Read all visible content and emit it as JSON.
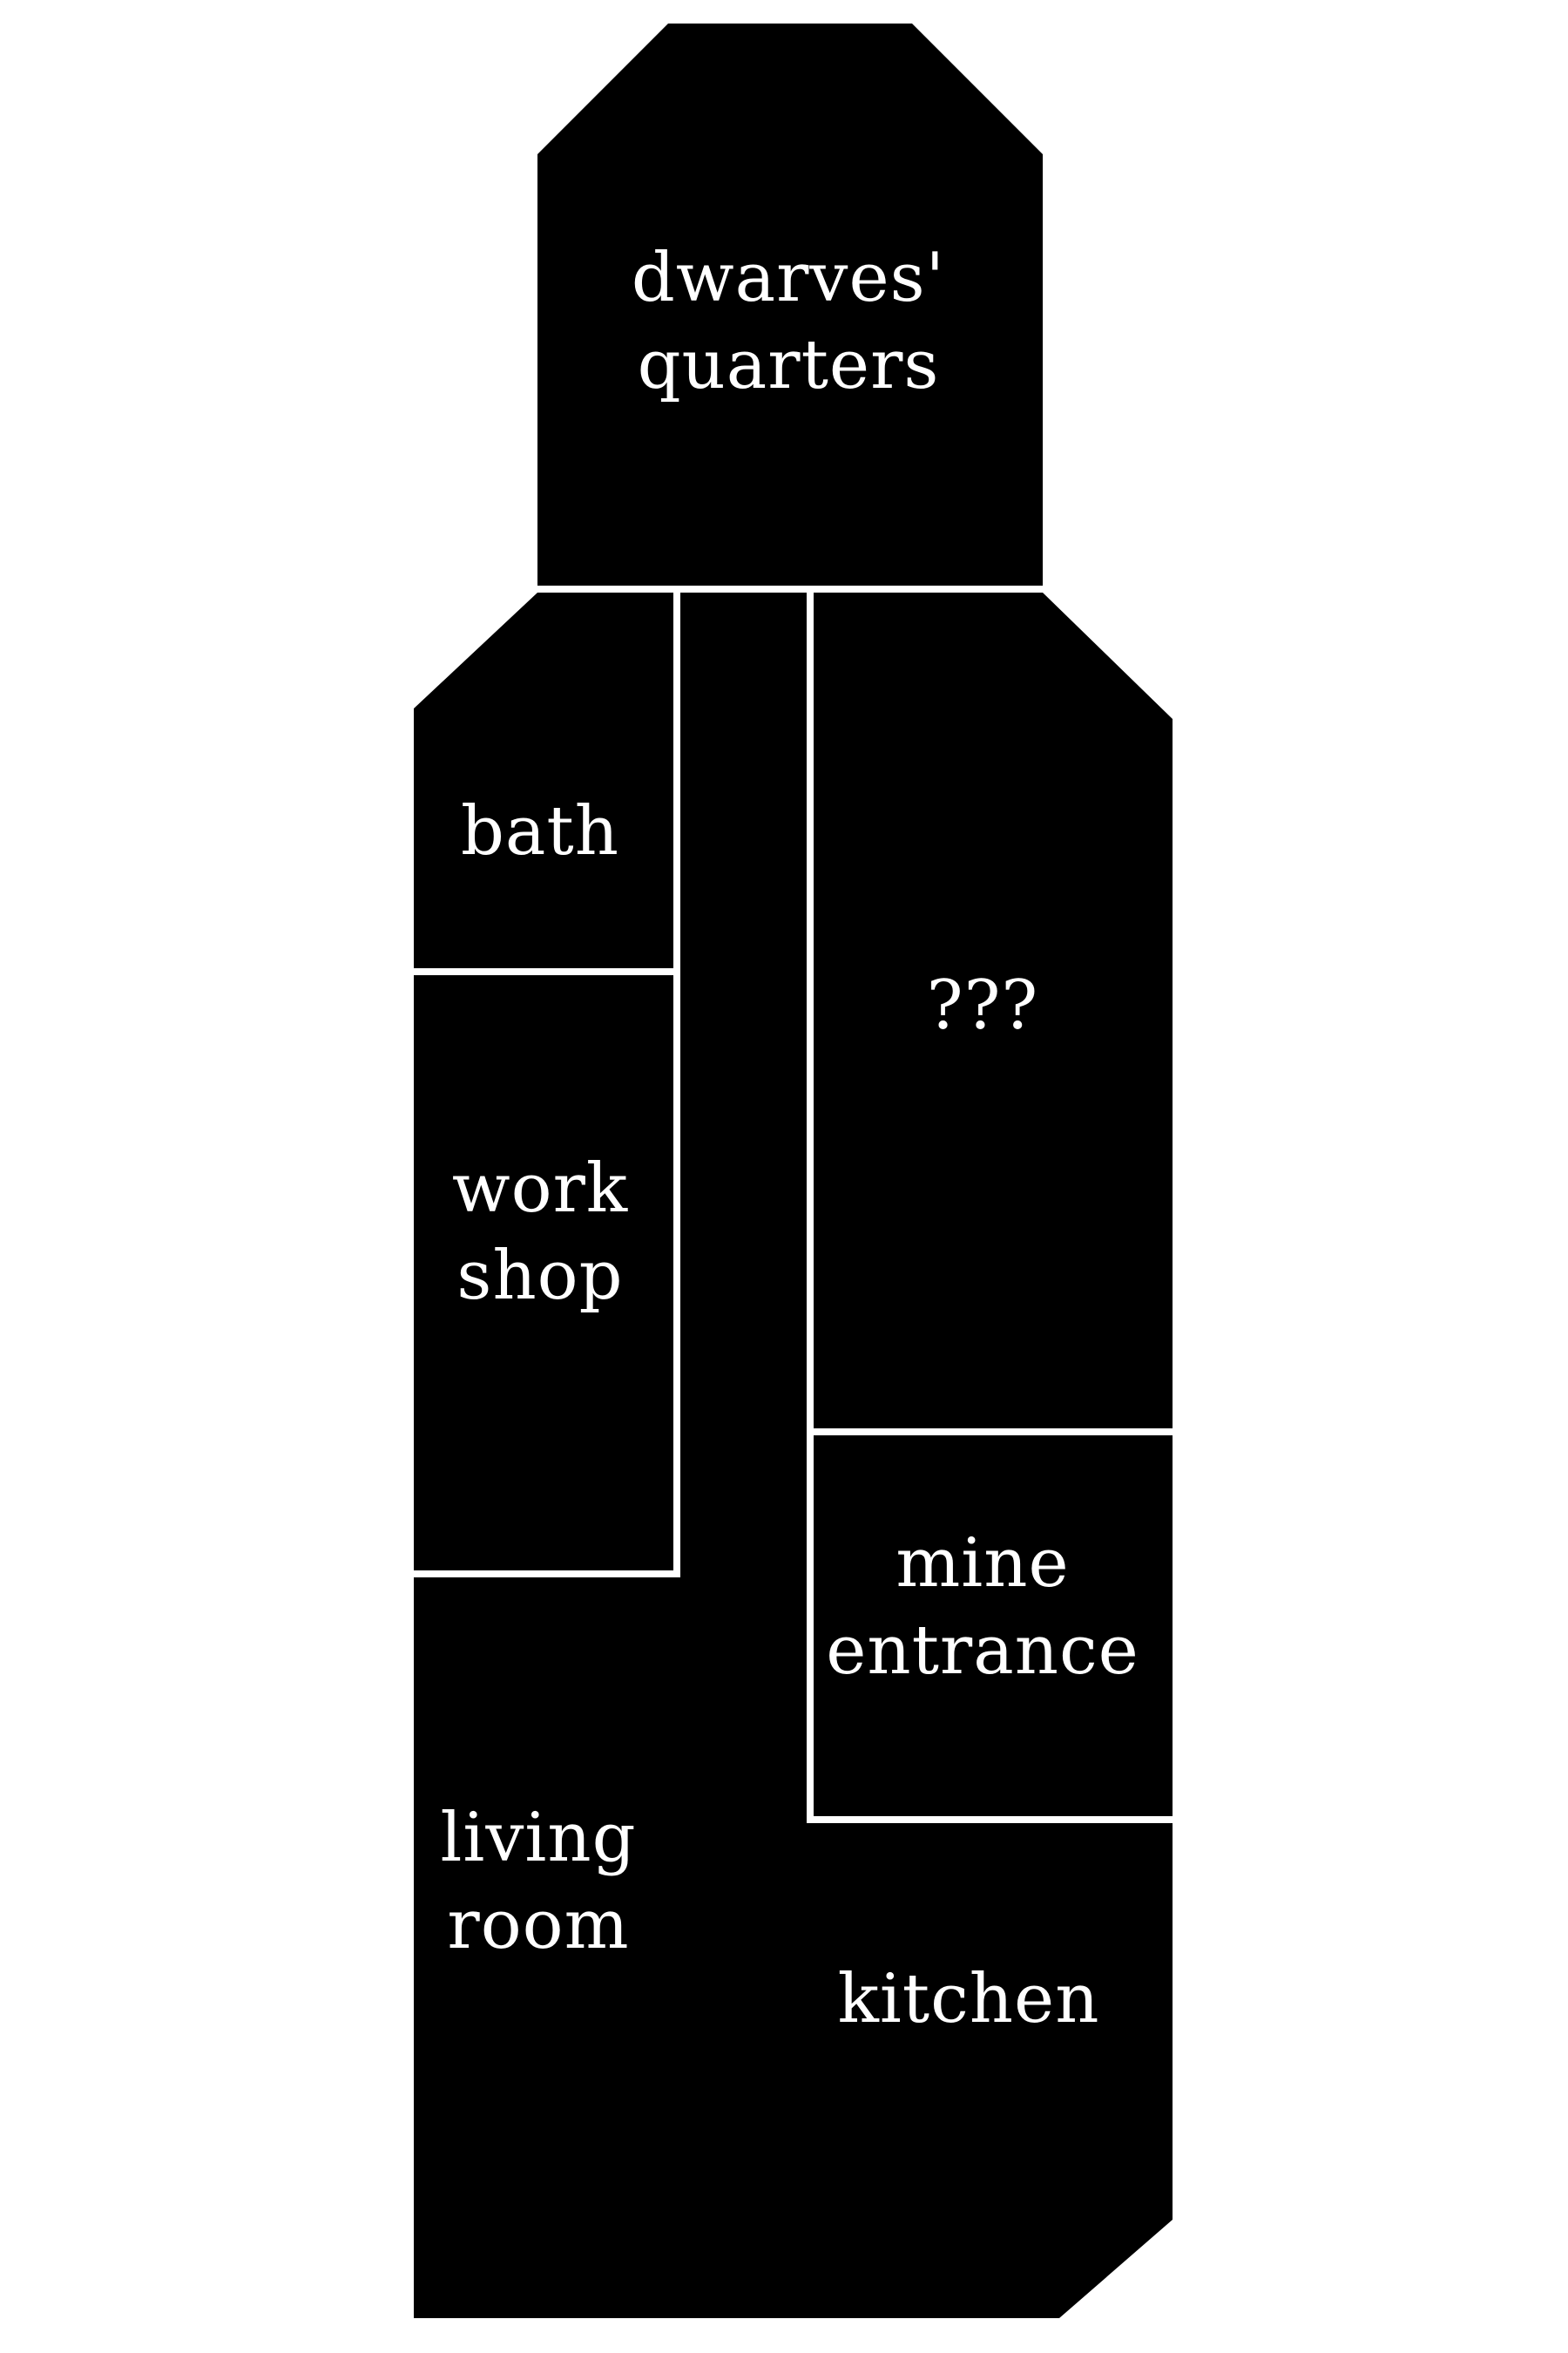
{
  "colors": {
    "background": "#ffffff",
    "room_fill": "#000000",
    "wall_lines": "#ffffff",
    "label_text": "#ffffff"
  },
  "rooms": {
    "dwarves_quarters": {
      "line1": "dwarves'",
      "line2": "quarters"
    },
    "bath": {
      "line1": "bath"
    },
    "workshop": {
      "line1": "work",
      "line2": "shop"
    },
    "unknown": {
      "line1": "???"
    },
    "mine_entrance": {
      "line1": "mine",
      "line2": "entrance"
    },
    "living_room": {
      "line1": "living",
      "line2": "room"
    },
    "kitchen": {
      "line1": "kitchen"
    }
  }
}
